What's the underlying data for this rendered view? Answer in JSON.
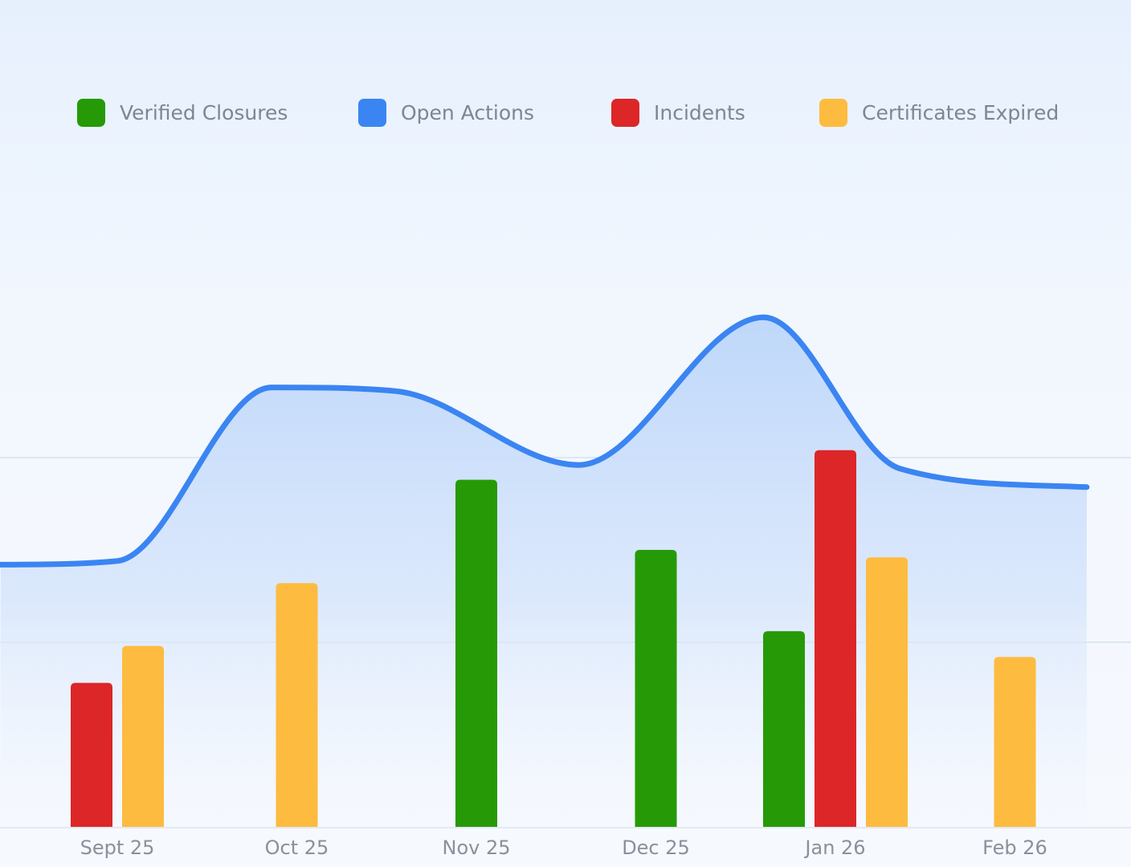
{
  "chart_data": {
    "type": "bar",
    "categories": [
      "Sept 25",
      "Oct 25",
      "Nov 25",
      "Dec 25",
      "Jan 26",
      "Feb 26"
    ],
    "ylim": [
      0,
      100
    ],
    "grid": true,
    "legend_position": "top",
    "series": [
      {
        "name": "Verified Closures",
        "kind": "bar",
        "color": "#269a06",
        "values": [
          0,
          0,
          47,
          37.5,
          26.5,
          0
        ]
      },
      {
        "name": "Incidents",
        "kind": "bar",
        "color": "#dc2628",
        "values": [
          19.5,
          0,
          0,
          0,
          51,
          0
        ]
      },
      {
        "name": "Certificates Expired",
        "kind": "bar",
        "color": "#fdbb40",
        "values": [
          24.5,
          33,
          0,
          0,
          36.5,
          23
        ]
      },
      {
        "name": "Open Actions",
        "kind": "area-line",
        "color": "#3b85f2",
        "x": [
          -0.65,
          0,
          0.86,
          1.55,
          2.57,
          3.6,
          4.36,
          5.4
        ],
        "values": [
          35.5,
          36,
          59.5,
          59,
          49,
          69,
          48.5,
          46
        ]
      }
    ],
    "legend": [
      {
        "name": "Verified Closures",
        "color": "#269a06"
      },
      {
        "name": "Open Actions",
        "color": "#3b85f2"
      },
      {
        "name": "Incidents",
        "color": "#dc2628"
      },
      {
        "name": "Certificates Expired",
        "color": "#fdbb40"
      }
    ]
  }
}
